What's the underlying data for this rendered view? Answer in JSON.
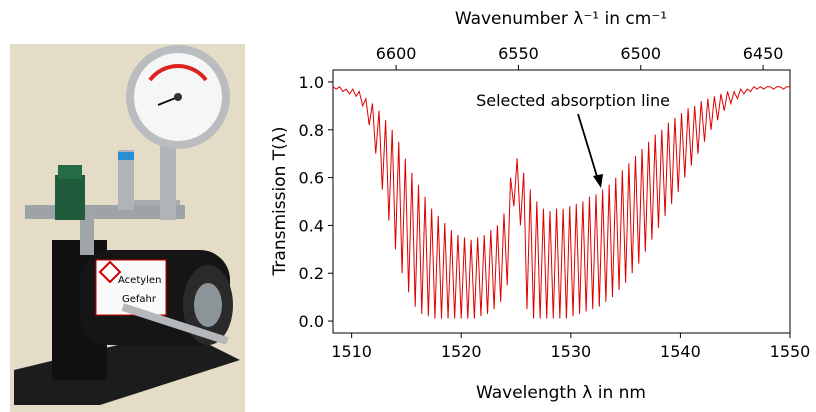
{
  "photo": {
    "label_lines": [
      "Acetylen",
      "Gefahr"
    ]
  },
  "chart_data": {
    "type": "line",
    "x_label": "Wavelength λ in nm",
    "y_label": "Transmission T(λ)",
    "x2_label": "Wavenumber λ⁻¹ in cm⁻¹",
    "annotation": "Selected absorption line",
    "color": "#dd0000",
    "xlim": [
      1508.3,
      1550
    ],
    "xticks": [
      1510,
      1520,
      1530,
      1540,
      1550
    ],
    "x2lim": [
      6625.8,
      6439
    ],
    "x2ticks": [
      6600,
      6550,
      6500,
      6450
    ],
    "ylim": [
      -0.05,
      1.05
    ],
    "yticks": [
      {
        "value": 0,
        "label": "0.0"
      },
      {
        "value": 0.2,
        "label": "0.2"
      },
      {
        "value": 0.4,
        "label": "0.4"
      },
      {
        "value": 0.6,
        "label": "0.6"
      },
      {
        "value": 0.8,
        "label": "0.8"
      },
      {
        "value": 1,
        "label": "1.0"
      }
    ],
    "x": [
      1508.3,
      1508.6,
      1508.9,
      1509.2,
      1509.5,
      1509.8,
      1510.1,
      1510.4,
      1510.7,
      1511.0,
      1511.3,
      1511.6,
      1511.9,
      1512.2,
      1512.5,
      1512.8,
      1513.1,
      1513.4,
      1513.7,
      1514.0,
      1514.3,
      1514.6,
      1514.9,
      1515.2,
      1515.5,
      1515.8,
      1516.1,
      1516.4,
      1516.7,
      1517.0,
      1517.3,
      1517.6,
      1517.9,
      1518.2,
      1518.5,
      1518.8,
      1519.1,
      1519.4,
      1519.7,
      1520.0,
      1520.3,
      1520.6,
      1520.9,
      1521.2,
      1521.5,
      1521.8,
      1522.1,
      1522.4,
      1522.7,
      1523.0,
      1523.3,
      1523.6,
      1523.9,
      1524.2,
      1524.5,
      1524.8,
      1525.1,
      1525.4,
      1525.7,
      1526.0,
      1526.3,
      1526.6,
      1526.9,
      1527.2,
      1527.5,
      1527.8,
      1528.1,
      1528.4,
      1528.7,
      1529.0,
      1529.3,
      1529.6,
      1529.9,
      1530.2,
      1530.5,
      1530.8,
      1531.1,
      1531.4,
      1531.7,
      1532.0,
      1532.3,
      1532.6,
      1532.9,
      1533.2,
      1533.5,
      1533.8,
      1534.1,
      1534.4,
      1534.7,
      1535.0,
      1535.3,
      1535.6,
      1535.9,
      1536.2,
      1536.5,
      1536.8,
      1537.1,
      1537.4,
      1537.7,
      1538.0,
      1538.3,
      1538.6,
      1538.9,
      1539.2,
      1539.5,
      1539.8,
      1540.1,
      1540.4,
      1540.7,
      1541.0,
      1541.3,
      1541.6,
      1541.9,
      1542.2,
      1542.5,
      1542.8,
      1543.1,
      1543.4,
      1543.7,
      1544.0,
      1544.3,
      1544.6,
      1544.9,
      1545.2,
      1545.5,
      1545.8,
      1546.1,
      1546.4,
      1546.7,
      1547.0,
      1547.3,
      1547.6,
      1547.9,
      1548.2,
      1548.5,
      1548.8,
      1549.1,
      1549.4,
      1549.7,
      1550.0
    ],
    "values": [
      0.98,
      0.97,
      0.98,
      0.96,
      0.97,
      0.95,
      0.97,
      0.94,
      0.96,
      0.9,
      0.93,
      0.82,
      0.91,
      0.7,
      0.88,
      0.55,
      0.84,
      0.42,
      0.8,
      0.3,
      0.75,
      0.2,
      0.68,
      0.12,
      0.62,
      0.06,
      0.57,
      0.03,
      0.52,
      0.02,
      0.47,
      0.01,
      0.44,
      0.01,
      0.41,
      0.01,
      0.38,
      0.01,
      0.36,
      0.01,
      0.35,
      0.01,
      0.34,
      0.01,
      0.35,
      0.02,
      0.36,
      0.03,
      0.38,
      0.05,
      0.4,
      0.08,
      0.45,
      0.15,
      0.6,
      0.48,
      0.68,
      0.4,
      0.62,
      0.05,
      0.55,
      0.01,
      0.5,
      0.01,
      0.47,
      0.01,
      0.46,
      0.01,
      0.47,
      0.01,
      0.47,
      0.01,
      0.48,
      0.02,
      0.49,
      0.03,
      0.5,
      0.04,
      0.52,
      0.05,
      0.53,
      0.06,
      0.55,
      0.08,
      0.57,
      0.1,
      0.6,
      0.13,
      0.63,
      0.16,
      0.66,
      0.2,
      0.69,
      0.24,
      0.72,
      0.29,
      0.75,
      0.34,
      0.78,
      0.39,
      0.8,
      0.44,
      0.83,
      0.49,
      0.85,
      0.54,
      0.87,
      0.6,
      0.89,
      0.65,
      0.9,
      0.7,
      0.92,
      0.75,
      0.93,
      0.8,
      0.94,
      0.84,
      0.95,
      0.88,
      0.96,
      0.91,
      0.96,
      0.93,
      0.97,
      0.95,
      0.97,
      0.96,
      0.98,
      0.97,
      0.98,
      0.97,
      0.98,
      0.98,
      0.97,
      0.98,
      0.98,
      0.97,
      0.98,
      0.98
    ]
  }
}
